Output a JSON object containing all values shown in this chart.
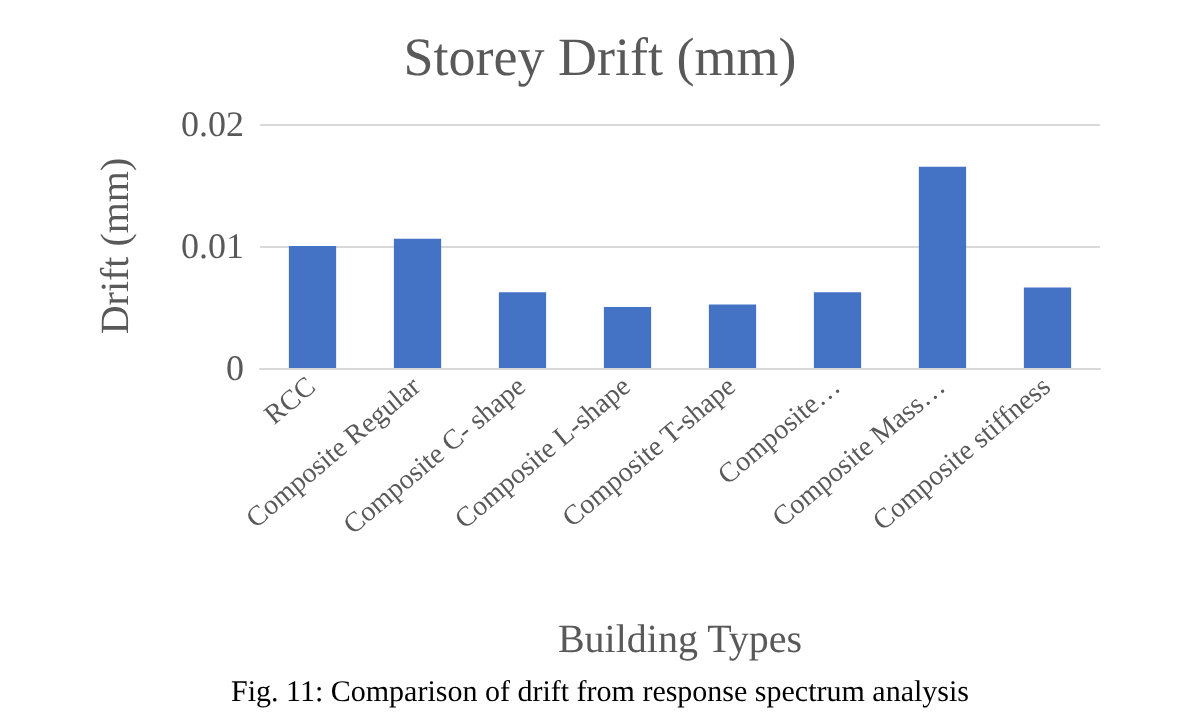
{
  "chart_data": {
    "type": "bar",
    "title": "Storey Drift (mm)",
    "xlabel": "Building Types",
    "ylabel": "Drift (mm)",
    "categories": [
      "RCC",
      "Composite Regular",
      "Composite C- shape",
      "Composite L-shape",
      "Composite T-shape",
      "Composite…",
      "Composite Mass…",
      "Composite stiffness"
    ],
    "values": [
      0.01,
      0.0106,
      0.0062,
      0.005,
      0.0052,
      0.0062,
      0.0165,
      0.0066
    ],
    "color": "#4472c4",
    "ylim": [
      0,
      0.02
    ],
    "yticks": [
      0,
      0.01,
      0.02
    ],
    "grid": "y",
    "annotations": [
      "Fig. 11: Comparison of drift from response spectrum analysis"
    ]
  }
}
